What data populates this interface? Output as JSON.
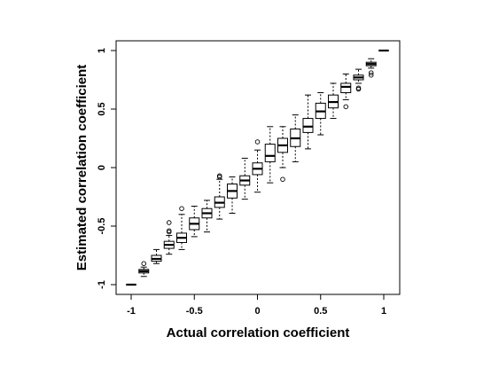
{
  "chart_data": {
    "type": "boxplot",
    "xlabel": "Actual correlation coefficient",
    "ylabel": "Estimated correlation coefficient",
    "xlim": [
      -1,
      1
    ],
    "ylim": [
      -1,
      1
    ],
    "x_ticks": [
      -1,
      -0.5,
      0,
      0.5,
      1
    ],
    "x_tick_labels": [
      "-1",
      "-0.5",
      "0",
      "0.5",
      "1"
    ],
    "y_ticks": [
      -1,
      -0.5,
      0,
      0.5,
      1
    ],
    "y_tick_labels": [
      "-1",
      "-0.5",
      "0",
      "0.5",
      "1"
    ],
    "grid": false,
    "legend": "none",
    "boxes": [
      {
        "x": -1.0,
        "min": -1.0,
        "q1": -1.0,
        "median": -1.0,
        "q3": -1.0,
        "max": -1.0,
        "outliers": []
      },
      {
        "x": -0.9,
        "min": -0.93,
        "q1": -0.9,
        "median": -0.885,
        "q3": -0.87,
        "max": -0.85,
        "outliers": [
          -0.82
        ]
      },
      {
        "x": -0.8,
        "min": -0.82,
        "q1": -0.8,
        "median": -0.78,
        "q3": -0.75,
        "max": -0.7,
        "outliers": []
      },
      {
        "x": -0.7,
        "min": -0.74,
        "q1": -0.69,
        "median": -0.66,
        "q3": -0.63,
        "max": -0.58,
        "outliers": [
          -0.55,
          -0.54,
          -0.47
        ]
      },
      {
        "x": -0.6,
        "min": -0.7,
        "q1": -0.64,
        "median": -0.6,
        "q3": -0.56,
        "max": -0.4,
        "outliers": [
          -0.35
        ]
      },
      {
        "x": -0.5,
        "min": -0.59,
        "q1": -0.53,
        "median": -0.48,
        "q3": -0.43,
        "max": -0.33,
        "outliers": []
      },
      {
        "x": -0.4,
        "min": -0.55,
        "q1": -0.43,
        "median": -0.39,
        "q3": -0.35,
        "max": -0.28,
        "outliers": []
      },
      {
        "x": -0.3,
        "min": -0.44,
        "q1": -0.34,
        "median": -0.3,
        "q3": -0.25,
        "max": -0.1,
        "outliers": [
          -0.08,
          -0.07
        ]
      },
      {
        "x": -0.2,
        "min": -0.39,
        "q1": -0.26,
        "median": -0.2,
        "q3": -0.14,
        "max": -0.08,
        "outliers": []
      },
      {
        "x": -0.1,
        "min": -0.27,
        "q1": -0.15,
        "median": -0.11,
        "q3": -0.07,
        "max": 0.08,
        "outliers": []
      },
      {
        "x": 0.0,
        "min": -0.21,
        "q1": -0.06,
        "median": -0.01,
        "q3": 0.04,
        "max": 0.15,
        "outliers": [
          0.22
        ]
      },
      {
        "x": 0.1,
        "min": -0.13,
        "q1": 0.05,
        "median": 0.1,
        "q3": 0.2,
        "max": 0.35,
        "outliers": []
      },
      {
        "x": 0.2,
        "min": 0.0,
        "q1": 0.13,
        "median": 0.19,
        "q3": 0.25,
        "max": 0.35,
        "outliers": [
          -0.1
        ]
      },
      {
        "x": 0.3,
        "min": 0.05,
        "q1": 0.18,
        "median": 0.25,
        "q3": 0.33,
        "max": 0.45,
        "outliers": []
      },
      {
        "x": 0.4,
        "min": 0.16,
        "q1": 0.3,
        "median": 0.35,
        "q3": 0.42,
        "max": 0.62,
        "outliers": []
      },
      {
        "x": 0.5,
        "min": 0.28,
        "q1": 0.42,
        "median": 0.48,
        "q3": 0.55,
        "max": 0.64,
        "outliers": []
      },
      {
        "x": 0.6,
        "min": 0.42,
        "q1": 0.51,
        "median": 0.56,
        "q3": 0.62,
        "max": 0.72,
        "outliers": []
      },
      {
        "x": 0.7,
        "min": 0.58,
        "q1": 0.64,
        "median": 0.69,
        "q3": 0.72,
        "max": 0.8,
        "outliers": [
          0.52
        ]
      },
      {
        "x": 0.8,
        "min": 0.72,
        "q1": 0.75,
        "median": 0.77,
        "q3": 0.79,
        "max": 0.84,
        "outliers": [
          0.67,
          0.68
        ]
      },
      {
        "x": 0.9,
        "min": 0.85,
        "q1": 0.87,
        "median": 0.885,
        "q3": 0.9,
        "max": 0.93,
        "outliers": [
          0.79,
          0.81
        ]
      },
      {
        "x": 1.0,
        "min": 1.0,
        "q1": 1.0,
        "median": 1.0,
        "q3": 1.0,
        "max": 1.0,
        "outliers": []
      }
    ]
  }
}
